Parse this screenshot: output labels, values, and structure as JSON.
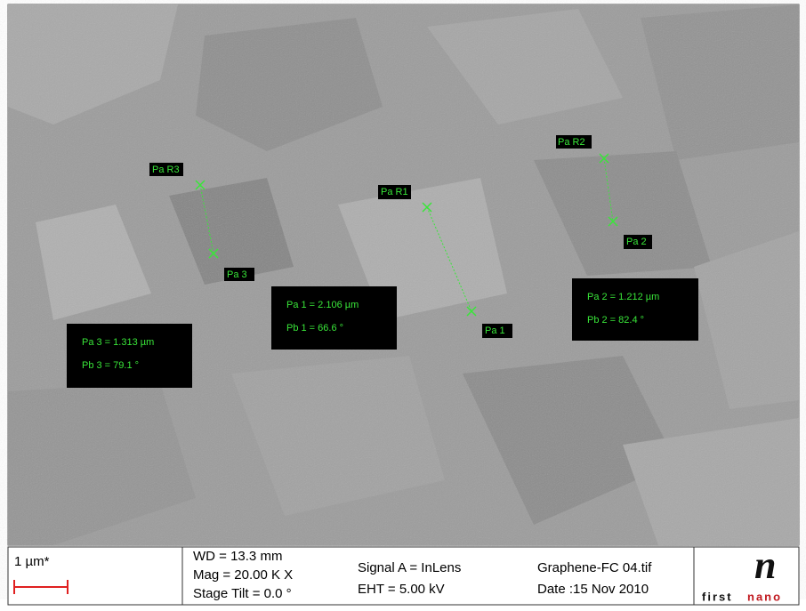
{
  "measurements": [
    {
      "ref_label": "Pa R3",
      "point_label": "Pa 3",
      "length": "Pa 3 = 1.313 µm",
      "angle": "Pb 3 = 79.1 °"
    },
    {
      "ref_label": "Pa R1",
      "point_label": "Pa 1",
      "length": "Pa 1 = 2.106 µm",
      "angle": "Pb 1 = 66.6 °"
    },
    {
      "ref_label": "Pa R2",
      "point_label": "Pa 2",
      "length": "Pa 2 = 1.212 µm",
      "angle": "Pb 2 = 82.4 °"
    }
  ],
  "info_bar": {
    "scale": "1 µm*",
    "wd": "WD = 13.3 mm",
    "mag": "Mag =  20.00 K X",
    "tilt": "Stage Tilt =  0.0 °",
    "signal": "Signal A = InLens",
    "eht": "EHT =  5.00 kV",
    "file": "Graphene-FC 04.tif",
    "date": "Date :15 Nov 2010"
  },
  "logo": {
    "letter": "n",
    "first": "first",
    "nano": "nano"
  }
}
